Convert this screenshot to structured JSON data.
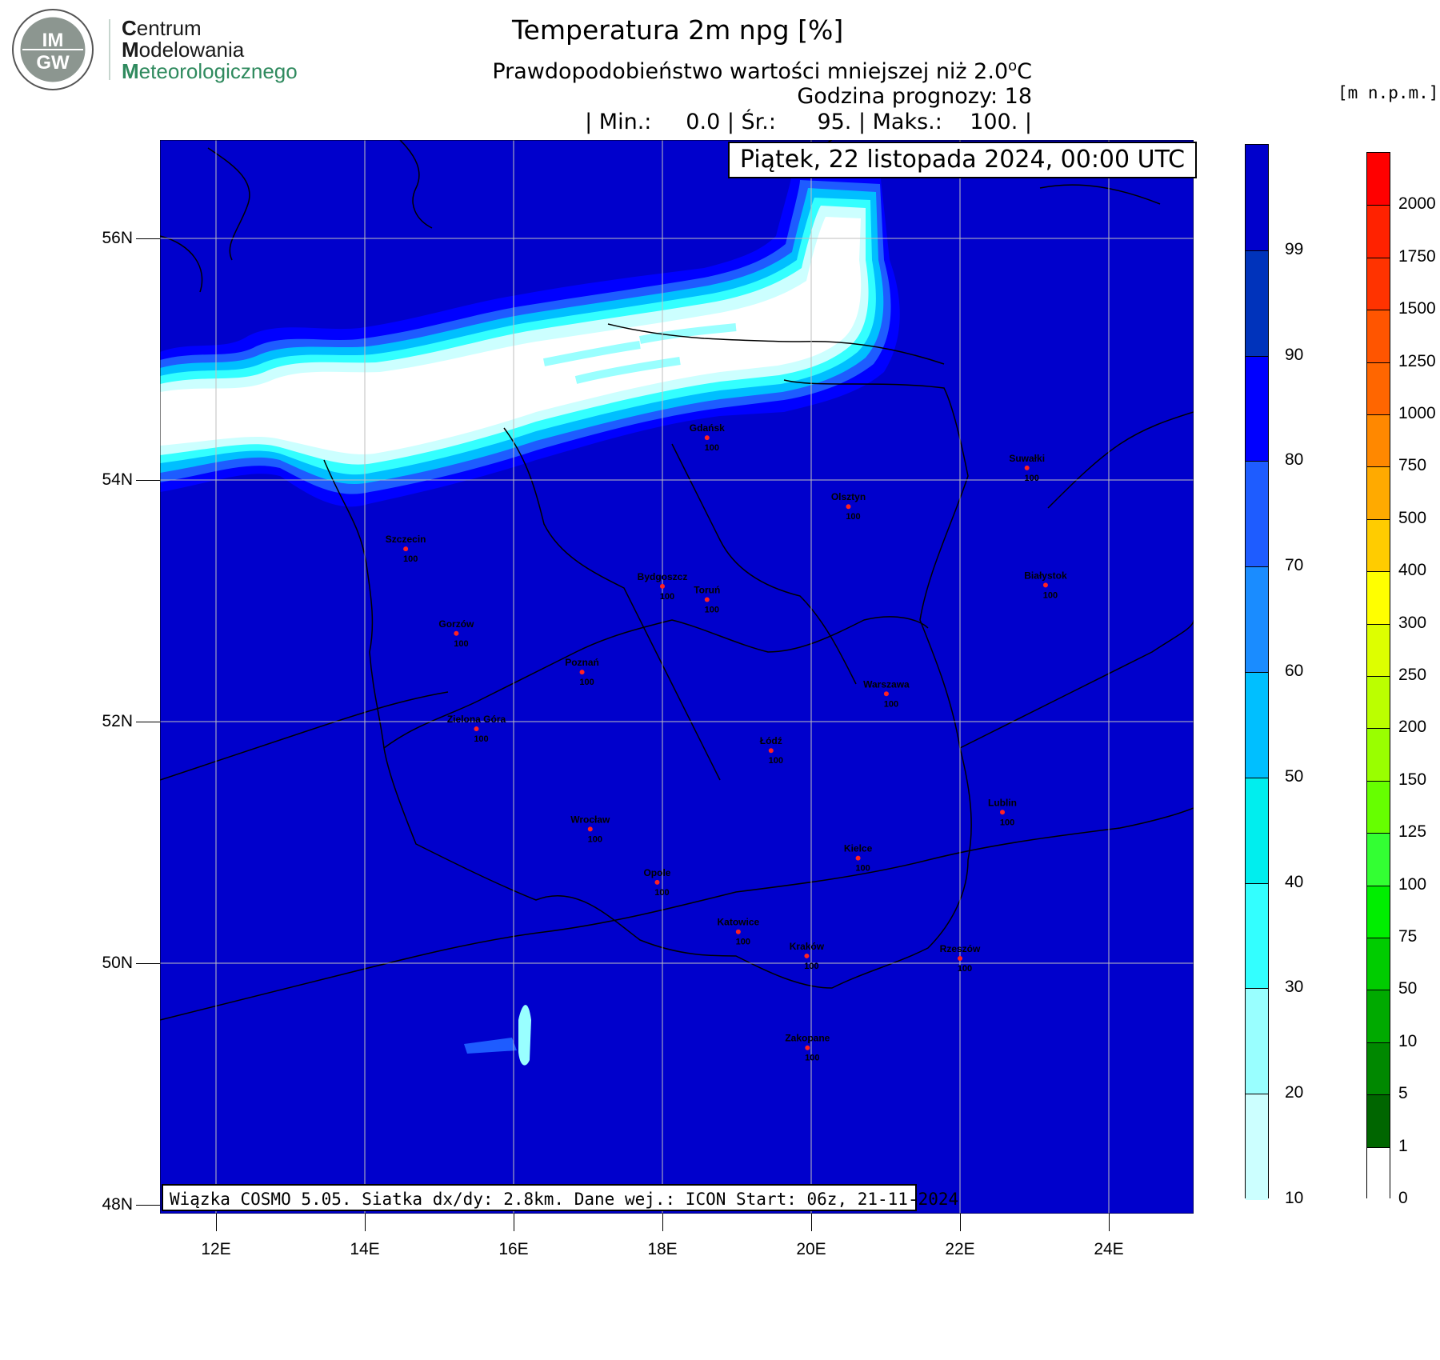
{
  "logo": {
    "badge_top": "IM",
    "badge_bottom": "GW",
    "org_line1_cap": "C",
    "org_line1_rest": "entrum",
    "org_line2_cap": "M",
    "org_line2_rest": "odelowania",
    "org_line3_cap": "M",
    "org_line3_rest": "eteorologicznego"
  },
  "header": {
    "title": "Temperatura 2m npg [%]",
    "subtitle": "Prawdopodobieństwo wartości mniejszej niż 2.0",
    "subtitle_unit_sup": "o",
    "subtitle_unit": "C",
    "forecast_hour": "Godzina prognozy: 18",
    "stats": "| Min.:     0.0 | Śr.:      95. | Maks.:    100. |",
    "date": "Piątek, 22 listopada 2024, 00:00 UTC",
    "height_unit": "[m n.p.m.]"
  },
  "footer": "Wiązka COSMO 5.05. Siatka dx/dy: 2.8km. Dane wej.: ICON Start: 06z, 21-11-2024",
  "axes": {
    "lat_labels": [
      "56N",
      "54N",
      "52N",
      "50N",
      "48N"
    ],
    "lon_labels": [
      "12E",
      "14E",
      "16E",
      "18E",
      "20E",
      "22E",
      "24E"
    ]
  },
  "probability_scale": {
    "ticks": [
      "99",
      "90",
      "80",
      "70",
      "60",
      "50",
      "40",
      "30",
      "20",
      "10"
    ],
    "colors": [
      "#0000cc",
      "#0033bb",
      "#0000ff",
      "#1e5cff",
      "#1a8cff",
      "#00bfff",
      "#00eeee",
      "#33ffff",
      "#99ffff",
      "#ccffff"
    ]
  },
  "height_scale": {
    "ticks": [
      "2000",
      "1750",
      "1500",
      "1250",
      "1000",
      "750",
      "500",
      "400",
      "300",
      "250",
      "200",
      "150",
      "125",
      "100",
      "75",
      "50",
      "10",
      "5",
      "1",
      "0"
    ],
    "colors": [
      "#ff0000",
      "#ff2200",
      "#ff3300",
      "#ff5500",
      "#ff6600",
      "#ff8800",
      "#ffaa00",
      "#ffcc00",
      "#ffff00",
      "#ddff00",
      "#bbff00",
      "#99ff00",
      "#66ff00",
      "#33ff33",
      "#00ee00",
      "#00cc00",
      "#00aa00",
      "#008800",
      "#006600",
      "#ffffff"
    ]
  },
  "cities": [
    {
      "name": "Gdańsk",
      "value": "100",
      "lon": 18.6,
      "lat": 54.35
    },
    {
      "name": "Suwałki",
      "value": "100",
      "lon": 22.9,
      "lat": 54.1
    },
    {
      "name": "Olsztyn",
      "value": "100",
      "lon": 20.5,
      "lat": 53.78
    },
    {
      "name": "Szczecin",
      "value": "100",
      "lon": 14.55,
      "lat": 53.43
    },
    {
      "name": "Bydgoszcz",
      "value": "100",
      "lon": 18.0,
      "lat": 53.12
    },
    {
      "name": "Toruń",
      "value": "100",
      "lon": 18.6,
      "lat": 53.01
    },
    {
      "name": "Białystok",
      "value": "100",
      "lon": 23.15,
      "lat": 53.13
    },
    {
      "name": "Gorzów",
      "value": "100",
      "lon": 15.23,
      "lat": 52.73
    },
    {
      "name": "Poznań",
      "value": "100",
      "lon": 16.92,
      "lat": 52.41
    },
    {
      "name": "Warszawa",
      "value": "100",
      "lon": 21.01,
      "lat": 52.23
    },
    {
      "name": "Zielona Góra",
      "value": "100",
      "lon": 15.5,
      "lat": 51.94
    },
    {
      "name": "Łódź",
      "value": "100",
      "lon": 19.46,
      "lat": 51.76
    },
    {
      "name": "Lublin",
      "value": "100",
      "lon": 22.57,
      "lat": 51.25
    },
    {
      "name": "Wrocław",
      "value": "100",
      "lon": 17.03,
      "lat": 51.11
    },
    {
      "name": "Kielce",
      "value": "100",
      "lon": 20.63,
      "lat": 50.87
    },
    {
      "name": "Opole",
      "value": "100",
      "lon": 17.93,
      "lat": 50.67
    },
    {
      "name": "Katowice",
      "value": "100",
      "lon": 19.02,
      "lat": 50.26
    },
    {
      "name": "Kraków",
      "value": "100",
      "lon": 19.94,
      "lat": 50.06
    },
    {
      "name": "Rzeszów",
      "value": "100",
      "lon": 22.0,
      "lat": 50.04
    },
    {
      "name": "Zakopane",
      "value": "100",
      "lon": 19.95,
      "lat": 49.3
    }
  ],
  "map_colors": {
    "sea_fill": "#0000cc",
    "accent": "#ffffff"
  }
}
